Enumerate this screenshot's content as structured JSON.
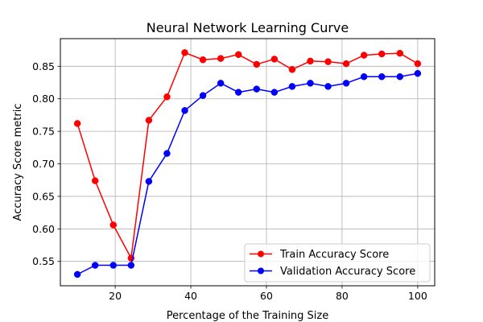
{
  "chart_data": {
    "type": "line",
    "title": "Neural Network Learning Curve",
    "xlabel": "Percentage of the Training Size",
    "ylabel": "Accuracy Score metric",
    "xlim": [
      5.5,
      104.5
    ],
    "ylim": [
      0.5125,
      0.8925
    ],
    "xticks": [
      20,
      40,
      60,
      80,
      100
    ],
    "yticks": [
      0.55,
      0.6,
      0.65,
      0.7,
      0.75,
      0.8,
      0.85
    ],
    "ytick_format": 2,
    "grid": true,
    "legend_position": "lower-right",
    "x": [
      10,
      14.7,
      19.5,
      24.2,
      28.9,
      33.7,
      38.4,
      43.2,
      47.9,
      52.6,
      57.4,
      62.1,
      66.8,
      71.6,
      76.3,
      81.1,
      85.8,
      90.5,
      95.3,
      100
    ],
    "series": [
      {
        "name": "Train Accuracy Score",
        "color": "#ff0000",
        "values": [
          0.762,
          0.674,
          0.606,
          0.555,
          0.767,
          0.803,
          0.871,
          0.86,
          0.862,
          0.868,
          0.853,
          0.861,
          0.845,
          0.858,
          0.857,
          0.854,
          0.867,
          0.869,
          0.87,
          0.854
        ]
      },
      {
        "name": "Validation Accuracy Score",
        "color": "#0000ff",
        "values": [
          0.53,
          0.544,
          0.544,
          0.544,
          0.673,
          0.716,
          0.782,
          0.805,
          0.824,
          0.81,
          0.815,
          0.81,
          0.819,
          0.824,
          0.819,
          0.824,
          0.834,
          0.834,
          0.834,
          0.839
        ]
      }
    ]
  }
}
